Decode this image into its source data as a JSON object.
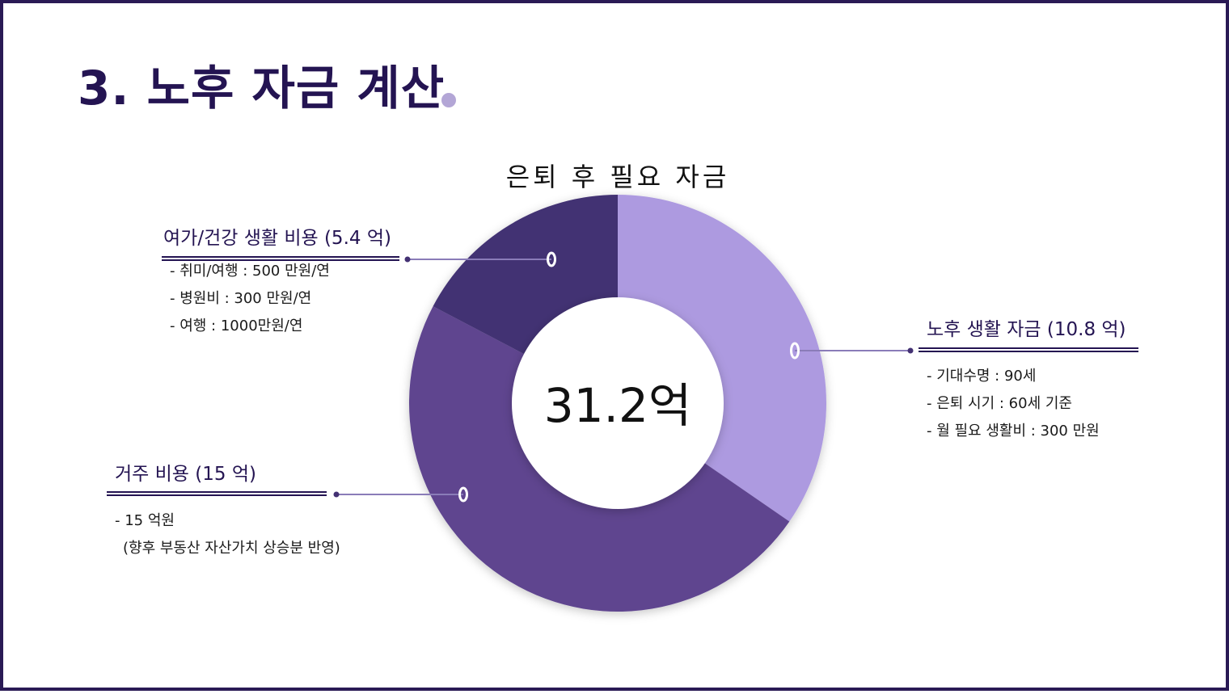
{
  "page": {
    "title": "3. 노후 자금 계산"
  },
  "colors": {
    "border": "#2a1a55",
    "title": "#241452",
    "title_dot": "#b3a6d6",
    "connector": "#8a7cb8"
  },
  "chart_data": {
    "type": "pie",
    "title": "은퇴 후 필요 자금",
    "center_label": "31.2억",
    "categories": [
      "노후 생활 자금",
      "거주 비용",
      "여가/건강 생활 비용"
    ],
    "values": [
      10.8,
      15,
      5.4
    ],
    "unit": "억",
    "colors": [
      "#ad9ae0",
      "#5e458f",
      "#433173"
    ],
    "start_angle_deg": 0,
    "direction": "clockwise"
  },
  "callouts": {
    "living": {
      "heading": "노후 생활 자금 (10.8 억)",
      "lines": [
        "- 기대수명 : 90세",
        "- 은퇴 시기 : 60세 기준",
        "- 월 필요 생활비 : 300 만원"
      ]
    },
    "leisure": {
      "heading": "여가/건강 생활 비용 (5.4 억)",
      "lines": [
        "- 취미/여행 : 500 만원/연",
        "- 병원비 : 300 만원/연",
        "- 여행 : 1000만원/연"
      ]
    },
    "housing": {
      "heading": "거주 비용 (15 억)",
      "lines": [
        "- 15 억원",
        "(향후 부동산 자산가치 상승분 반영)"
      ]
    }
  }
}
